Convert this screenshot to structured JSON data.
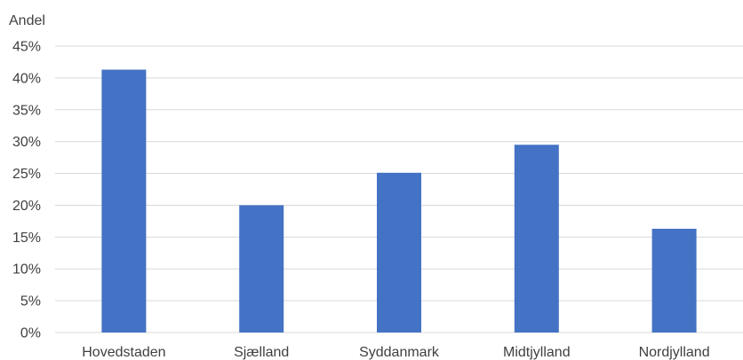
{
  "chart_data": {
    "type": "bar",
    "ylabel": "Andel",
    "categories": [
      "Hovedstaden",
      "Sjælland",
      "Syddanmark",
      "Midtjylland",
      "Nordjylland"
    ],
    "values": [
      41.3,
      20.0,
      25.1,
      29.5,
      16.3
    ],
    "ylim": [
      0,
      45
    ],
    "yticks": [
      0,
      5,
      10,
      15,
      20,
      25,
      30,
      35,
      40,
      45
    ],
    "ytick_format": "{v}%",
    "grid": true,
    "legend": "none",
    "colors": {
      "bar": "#4472C4",
      "grid": "#D9D9D9",
      "text": "#404040"
    }
  }
}
